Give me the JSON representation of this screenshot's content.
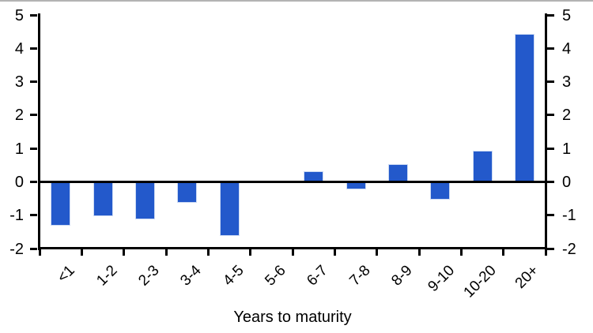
{
  "chart_data": {
    "type": "bar",
    "title": "",
    "xlabel": "Years to maturity",
    "ylabel": "",
    "categories": [
      "<1",
      "1-2",
      "2-3",
      "3-4",
      "4-5",
      "5-6",
      "6-7",
      "7-8",
      "8-9",
      "9-10",
      "10-20",
      "20+"
    ],
    "values": [
      -1.3,
      -1.0,
      -1.1,
      -0.6,
      -1.6,
      0,
      0.3,
      -0.2,
      0.5,
      -0.5,
      0.9,
      4.4
    ],
    "ylim": [
      -2,
      5
    ],
    "yticks": [
      5,
      4,
      3,
      2,
      1,
      0,
      -1,
      -2
    ],
    "dual_y_axis": true,
    "grid": false,
    "legend": "none",
    "bar_color": "#2359cb",
    "bar_edge_color": "#ccdaf3",
    "axis_color": "#000000",
    "text_color": "#000000"
  }
}
